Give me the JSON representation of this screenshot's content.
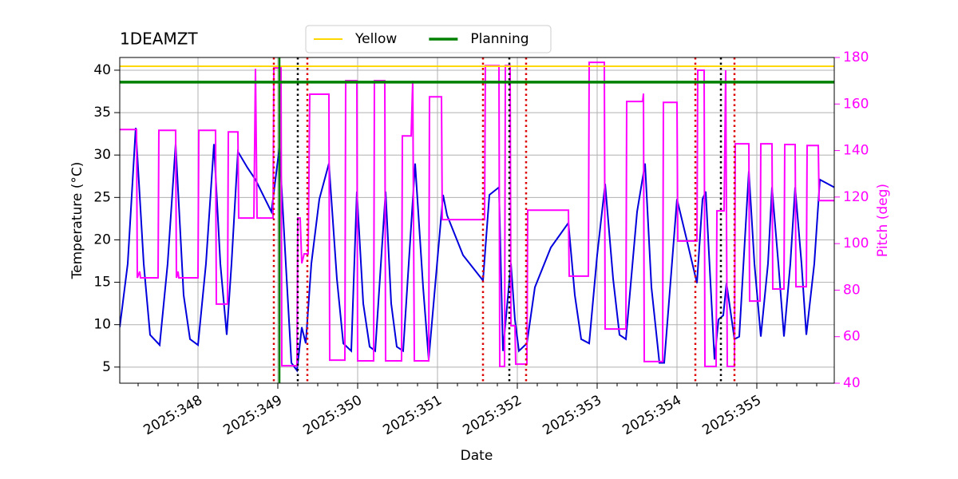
{
  "chart_data": {
    "type": "line",
    "title": "1DEAMZT",
    "xlabel": "Date",
    "ylabel": "Temperature (°C)",
    "y2label": "Pitch (deg)",
    "y2color": "#ff00ff",
    "xlim": [
      347.02,
      355.97
    ],
    "xticks": [
      {
        "value": 348,
        "label": "2025:348"
      },
      {
        "value": 349,
        "label": "2025:349"
      },
      {
        "value": 350,
        "label": "2025:350"
      },
      {
        "value": 351,
        "label": "2025:351"
      },
      {
        "value": 352,
        "label": "2025:352"
      },
      {
        "value": 353,
        "label": "2025:353"
      },
      {
        "value": 354,
        "label": "2025:354"
      },
      {
        "value": 355,
        "label": "2025:355"
      }
    ],
    "xminorticks": [
      347.25,
      347.5,
      347.75,
      348.25,
      348.5,
      348.75,
      349.25,
      349.5,
      349.75,
      350.25,
      350.5,
      350.75,
      351.25,
      351.5,
      351.75,
      352.25,
      352.5,
      352.75,
      353.25,
      353.5,
      353.75,
      354.25,
      354.5,
      354.75,
      355.25,
      355.5,
      355.75
    ],
    "ylim": [
      3.1,
      41.5
    ],
    "yticks": [
      5,
      10,
      15,
      20,
      25,
      30,
      35,
      40
    ],
    "y2lim": [
      40,
      180
    ],
    "y2ticks": [
      40,
      60,
      80,
      100,
      120,
      140,
      160,
      180
    ],
    "grid": true,
    "legend": "upper center",
    "hlines": [
      {
        "name": "Yellow",
        "value": 40.47,
        "color": "#ffd700",
        "width": 2
      },
      {
        "name": "Planning",
        "value": 38.59,
        "color": "#008000",
        "width": 3.5
      }
    ],
    "vlines": [
      {
        "x": 349.02,
        "color": "#008000",
        "style": "solid"
      },
      {
        "x": 348.95,
        "color": "#dd0000",
        "style": "dotted"
      },
      {
        "x": 349.37,
        "color": "#dd0000",
        "style": "dotted"
      },
      {
        "x": 351.57,
        "color": "#dd0000",
        "style": "dotted"
      },
      {
        "x": 352.11,
        "color": "#dd0000",
        "style": "dotted"
      },
      {
        "x": 354.23,
        "color": "#dd0000",
        "style": "dotted"
      },
      {
        "x": 354.72,
        "color": "#dd0000",
        "style": "dotted"
      },
      {
        "x": 349.25,
        "color": "#000000",
        "style": "dotted"
      },
      {
        "x": 351.9,
        "color": "#000000",
        "style": "dotted"
      },
      {
        "x": 354.55,
        "color": "#000000",
        "style": "dotted"
      }
    ],
    "series": [
      {
        "color": "#0000dd",
        "axis": "y",
        "x": [
          347.02,
          347.12,
          347.22,
          347.32,
          347.4,
          347.52,
          347.62,
          347.72,
          347.82,
          347.9,
          348.0,
          348.1,
          348.2,
          348.28,
          348.36,
          348.42,
          348.5,
          348.62,
          348.72,
          348.92,
          349.02,
          349.1,
          349.17,
          349.24,
          349.3,
          349.35,
          349.42,
          349.52,
          349.64,
          349.74,
          349.82,
          349.92,
          349.99,
          350.07,
          350.15,
          350.22,
          350.35,
          350.42,
          350.49,
          350.57,
          350.72,
          350.82,
          350.89,
          351.07,
          351.12,
          351.32,
          351.57,
          351.65,
          351.77,
          351.82,
          351.92,
          351.97,
          352.02,
          352.12,
          352.22,
          352.42,
          352.64,
          352.72,
          352.8,
          352.9,
          353.0,
          353.1,
          353.2,
          353.28,
          353.36,
          353.5,
          353.6,
          353.68,
          353.78,
          353.84,
          354.0,
          354.12,
          354.25,
          354.32,
          354.36,
          354.47,
          354.52,
          354.58,
          354.62,
          354.72,
          354.78,
          354.9,
          354.97,
          355.05,
          355.14,
          355.19,
          355.27,
          355.34,
          355.42,
          355.48,
          355.56,
          355.62,
          355.72,
          355.79,
          355.97
        ],
        "values": [
          9.7,
          17.2,
          33.2,
          17.2,
          8.8,
          7.6,
          17.2,
          31.3,
          13.5,
          8.3,
          7.6,
          17.2,
          31.3,
          17.2,
          8.8,
          17.2,
          30.4,
          28.5,
          27.1,
          23.3,
          30.9,
          17.2,
          5.5,
          4.6,
          9.7,
          7.8,
          17.2,
          24.8,
          29.0,
          15.4,
          7.8,
          6.9,
          25.7,
          12.5,
          7.4,
          6.9,
          25.7,
          12.5,
          7.4,
          6.9,
          29.0,
          14.4,
          5.9,
          25.3,
          22.9,
          18.2,
          15.2,
          25.3,
          26.2,
          6.9,
          17.2,
          10.6,
          6.9,
          7.8,
          14.4,
          19.1,
          22.0,
          13.5,
          8.3,
          7.8,
          18.2,
          26.6,
          15.4,
          8.8,
          8.3,
          23.3,
          29.0,
          14.4,
          5.5,
          5.5,
          24.8,
          20.1,
          14.9,
          24.8,
          25.7,
          5.9,
          10.6,
          11.1,
          14.9,
          8.3,
          8.6,
          28.1,
          17.2,
          8.6,
          17.2,
          26.2,
          17.2,
          8.6,
          17.2,
          26.2,
          17.2,
          8.8,
          17.2,
          27.1,
          26.2
        ]
      },
      {
        "color": "#ff00ff",
        "axis": "y2",
        "x": [
          347.02,
          347.23,
          347.24,
          347.27,
          347.28,
          347.5,
          347.51,
          347.72,
          347.73,
          347.75,
          347.76,
          348.0,
          348.01,
          348.22,
          348.23,
          348.37,
          348.38,
          348.5,
          348.51,
          348.7,
          348.72,
          348.74,
          348.94,
          348.95,
          349.04,
          349.05,
          349.24,
          349.25,
          349.28,
          349.3,
          349.33,
          349.38,
          349.4,
          349.64,
          349.65,
          349.84,
          349.85,
          349.99,
          350.0,
          350.2,
          350.21,
          350.34,
          350.35,
          350.55,
          350.56,
          350.67,
          350.69,
          350.71,
          350.89,
          350.9,
          351.05,
          351.06,
          351.59,
          351.6,
          351.77,
          351.78,
          351.84,
          351.85,
          351.91,
          351.92,
          351.97,
          351.98,
          352.12,
          352.13,
          352.64,
          352.65,
          352.89,
          352.9,
          353.09,
          353.1,
          353.36,
          353.37,
          353.57,
          353.58,
          353.59,
          353.82,
          353.83,
          354.0,
          354.01,
          354.25,
          354.26,
          354.34,
          354.35,
          354.49,
          354.5,
          354.59,
          354.61,
          354.63,
          354.72,
          354.73,
          354.9,
          354.91,
          355.04,
          355.05,
          355.19,
          355.2,
          355.34,
          355.35,
          355.48,
          355.49,
          355.62,
          355.63,
          355.77,
          355.78,
          355.97
        ],
        "values": [
          149.0,
          149.0,
          85.3,
          88.0,
          85.3,
          85.3,
          148.7,
          148.7,
          85.3,
          88.0,
          85.3,
          85.3,
          148.7,
          148.7,
          74.0,
          74.0,
          148.0,
          148.0,
          111.0,
          111.0,
          175.1,
          111.0,
          111.0,
          175.5,
          175.5,
          47.5,
          47.5,
          111.0,
          111.0,
          91.5,
          95.6,
          95.6,
          164.2,
          164.2,
          49.9,
          49.9,
          170.0,
          170.0,
          49.6,
          49.6,
          170.0,
          170.0,
          49.6,
          49.6,
          146.3,
          146.3,
          170.0,
          49.6,
          49.6,
          163.1,
          163.1,
          110.3,
          110.3,
          176.5,
          176.5,
          47.2,
          47.2,
          176.5,
          176.5,
          64.7,
          64.7,
          48.2,
          48.2,
          114.4,
          114.4,
          86.0,
          86.0,
          177.9,
          177.9,
          63.3,
          63.3,
          161.1,
          161.1,
          164.5,
          49.3,
          49.3,
          160.7,
          160.7,
          101.1,
          101.1,
          174.5,
          174.5,
          47.2,
          47.2,
          114.1,
          114.1,
          174.5,
          47.2,
          47.2,
          142.9,
          142.9,
          75.3,
          75.3,
          142.9,
          142.9,
          80.5,
          80.5,
          142.6,
          142.6,
          81.5,
          81.5,
          142.2,
          142.2,
          118.5,
          118.5
        ]
      }
    ]
  }
}
